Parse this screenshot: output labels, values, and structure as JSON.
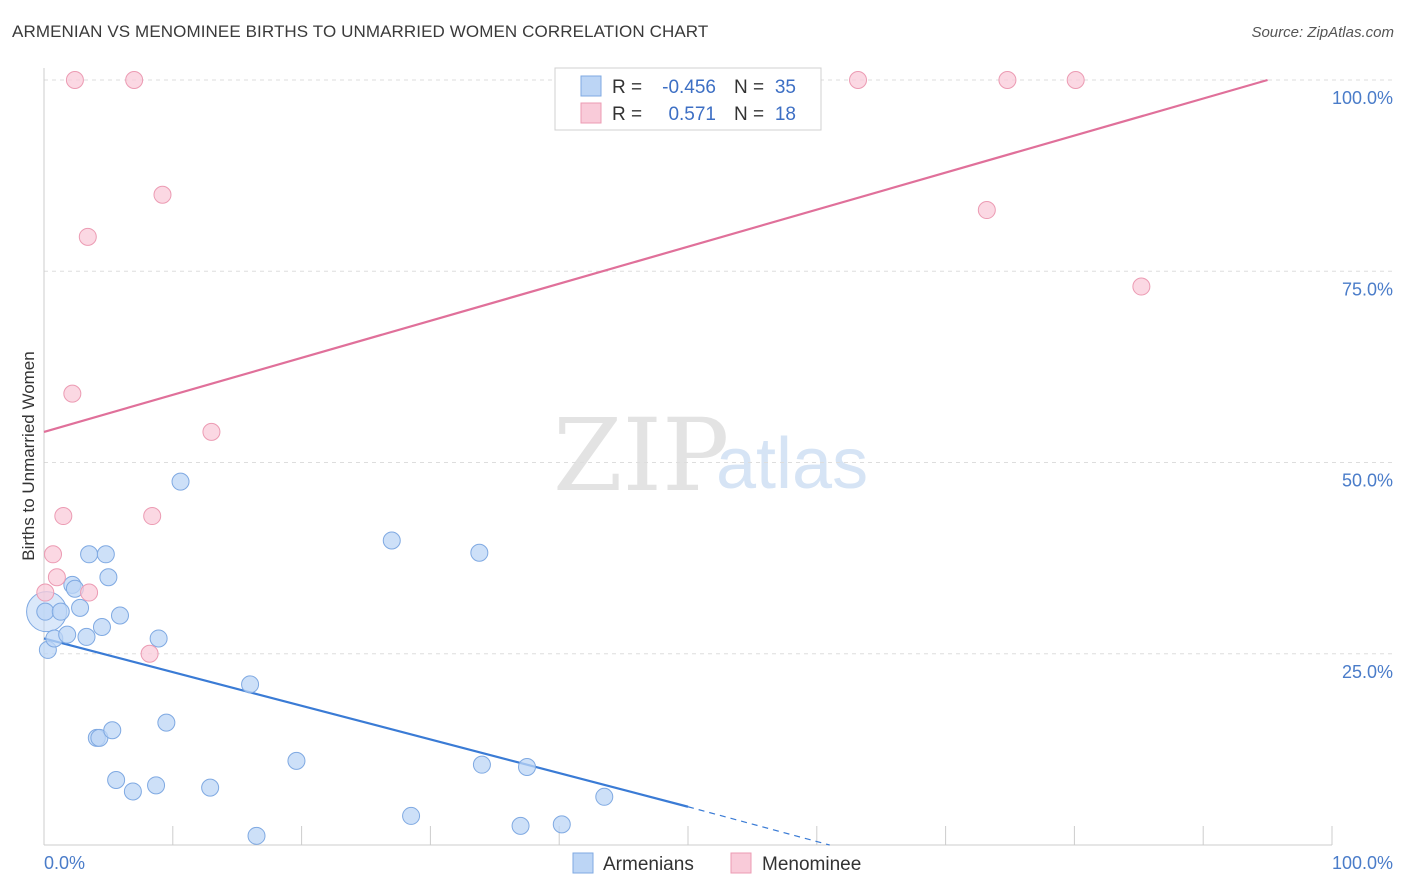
{
  "title": "ARMENIAN VS MENOMINEE BIRTHS TO UNMARRIED WOMEN CORRELATION CHART",
  "source": "Source: ZipAtlas.com",
  "watermark": {
    "zip": "ZIP",
    "atlas": "atlas"
  },
  "colors": {
    "armenians_fill": "#bcd5f5",
    "armenians_stroke": "#7fa9e2",
    "armenians_line": "#3a7bd5",
    "menominee_fill": "#f9cbd9",
    "menominee_stroke": "#ec9bb3",
    "menominee_line": "#e0709a",
    "grid": "#dddddd",
    "tick_text": "#4a7cc9"
  },
  "legend": {
    "rows": [
      {
        "series": "Armenians",
        "r_label": "R =",
        "r_value": "-0.456",
        "n_label": "N =",
        "n_value": "35"
      },
      {
        "series": "Menominee",
        "r_label": "R =",
        "r_value": "0.571",
        "n_label": "N =",
        "n_value": "18"
      }
    ]
  },
  "chart_data": {
    "type": "scatter",
    "title": "ARMENIAN VS MENOMINEE BIRTHS TO UNMARRIED WOMEN CORRELATION CHART",
    "xlabel": "",
    "ylabel": "Births to Unmarried Women",
    "xlim": [
      0,
      100
    ],
    "ylim": [
      0,
      100
    ],
    "x_tick_labels": [
      "0.0%",
      "100.0%"
    ],
    "y_ticks": [
      25,
      50,
      75,
      100
    ],
    "y_tick_labels": [
      "25.0%",
      "50.0%",
      "75.0%",
      "100.0%"
    ],
    "grid": true,
    "legend_position": "bottom-center",
    "series": [
      {
        "name": "Armenians",
        "points": [
          [
            0.1,
            30.5
          ],
          [
            0.3,
            25.5
          ],
          [
            0.8,
            27.0
          ],
          [
            1.3,
            30.5
          ],
          [
            1.8,
            27.5
          ],
          [
            2.2,
            34.0
          ],
          [
            2.4,
            33.5
          ],
          [
            2.8,
            31.0
          ],
          [
            3.3,
            27.2
          ],
          [
            3.5,
            38.0
          ],
          [
            4.1,
            14.0
          ],
          [
            4.3,
            14.0
          ],
          [
            4.5,
            28.5
          ],
          [
            4.8,
            38.0
          ],
          [
            5.0,
            35.0
          ],
          [
            5.3,
            15.0
          ],
          [
            5.6,
            8.5
          ],
          [
            5.9,
            30.0
          ],
          [
            6.9,
            7.0
          ],
          [
            8.7,
            7.8
          ],
          [
            8.9,
            27.0
          ],
          [
            9.5,
            16.0
          ],
          [
            10.6,
            47.5
          ],
          [
            12.9,
            7.5
          ],
          [
            16.0,
            21.0
          ],
          [
            16.5,
            1.2
          ],
          [
            19.6,
            11.0
          ],
          [
            27.0,
            39.8
          ],
          [
            28.5,
            3.8
          ],
          [
            33.8,
            38.2
          ],
          [
            34.0,
            10.5
          ],
          [
            37.0,
            2.5
          ],
          [
            37.5,
            10.2
          ],
          [
            40.2,
            2.7
          ],
          [
            43.5,
            6.3
          ]
        ],
        "big_point": [
          0.2,
          30.5
        ],
        "trend": {
          "x0": 0,
          "y0": 27.0,
          "x1": 50,
          "y1": 5.0,
          "dash_x1": 61,
          "dash_y1": 0
        }
      },
      {
        "name": "Menominee",
        "points": [
          [
            0.1,
            33.0
          ],
          [
            0.7,
            38.0
          ],
          [
            1.0,
            35.0
          ],
          [
            1.5,
            43.0
          ],
          [
            2.2,
            59.0
          ],
          [
            2.4,
            100
          ],
          [
            3.4,
            79.5
          ],
          [
            3.5,
            33.0
          ],
          [
            7.0,
            100
          ],
          [
            8.2,
            25.0
          ],
          [
            8.4,
            43.0
          ],
          [
            9.2,
            85.0
          ],
          [
            13.0,
            54.0
          ],
          [
            63.2,
            100
          ],
          [
            73.2,
            83.0
          ],
          [
            74.8,
            100
          ],
          [
            80.1,
            100
          ],
          [
            85.2,
            73.0
          ]
        ],
        "trend": {
          "x0": 0,
          "y0": 54.0,
          "x1": 95,
          "y1": 100
        }
      }
    ]
  }
}
